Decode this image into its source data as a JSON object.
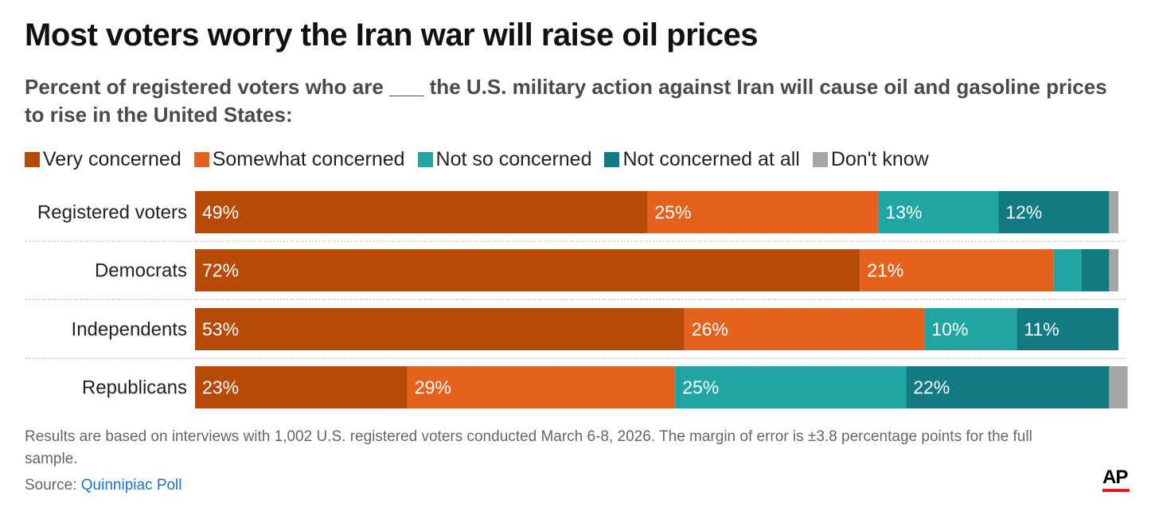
{
  "title": "Most voters worry the Iran war will raise oil prices",
  "subtitle": "Percent of registered voters who are ___ the U.S. military action against Iran will cause oil and gasoline prices to rise in the United States:",
  "note": "Results are based on interviews with 1,002 U.S. registered voters conducted March 6-8, 2026. The margin of error is ±3.8 percentage points for the full sample.",
  "source_label": "Source:",
  "source_link": "Quinnipiac Poll",
  "logo": "AP",
  "chart_data": {
    "type": "bar",
    "orientation": "horizontal",
    "stacked": true,
    "title": "Most voters worry the Iran war will raise oil prices",
    "categories": [
      "Registered voters",
      "Democrats",
      "Independents",
      "Republicans"
    ],
    "series": [
      {
        "name": "Very concerned",
        "color": "#b84a08",
        "values": [
          49,
          72,
          53,
          23
        ],
        "labels": [
          "49%",
          "72%",
          "53%",
          "23%"
        ]
      },
      {
        "name": "Somewhat concerned",
        "color": "#e2621e",
        "values": [
          25,
          21,
          26,
          29
        ],
        "labels": [
          "25%",
          "21%",
          "26%",
          "29%"
        ]
      },
      {
        "name": "Not so concerned",
        "color": "#1fa5a3",
        "values": [
          13,
          3,
          10,
          25
        ],
        "labels": [
          "13%",
          "",
          "10%",
          "25%"
        ]
      },
      {
        "name": "Not concerned at all",
        "color": "#127a82",
        "values": [
          12,
          3,
          11,
          22
        ],
        "labels": [
          "12%",
          "",
          "11%",
          "22%"
        ]
      },
      {
        "name": "Don't know",
        "color": "#a6a6a6",
        "values": [
          1,
          1,
          0,
          2
        ],
        "labels": [
          "",
          "",
          "",
          ""
        ]
      }
    ],
    "xlim": [
      0,
      100
    ],
    "legend": "top-left",
    "grid": false
  }
}
